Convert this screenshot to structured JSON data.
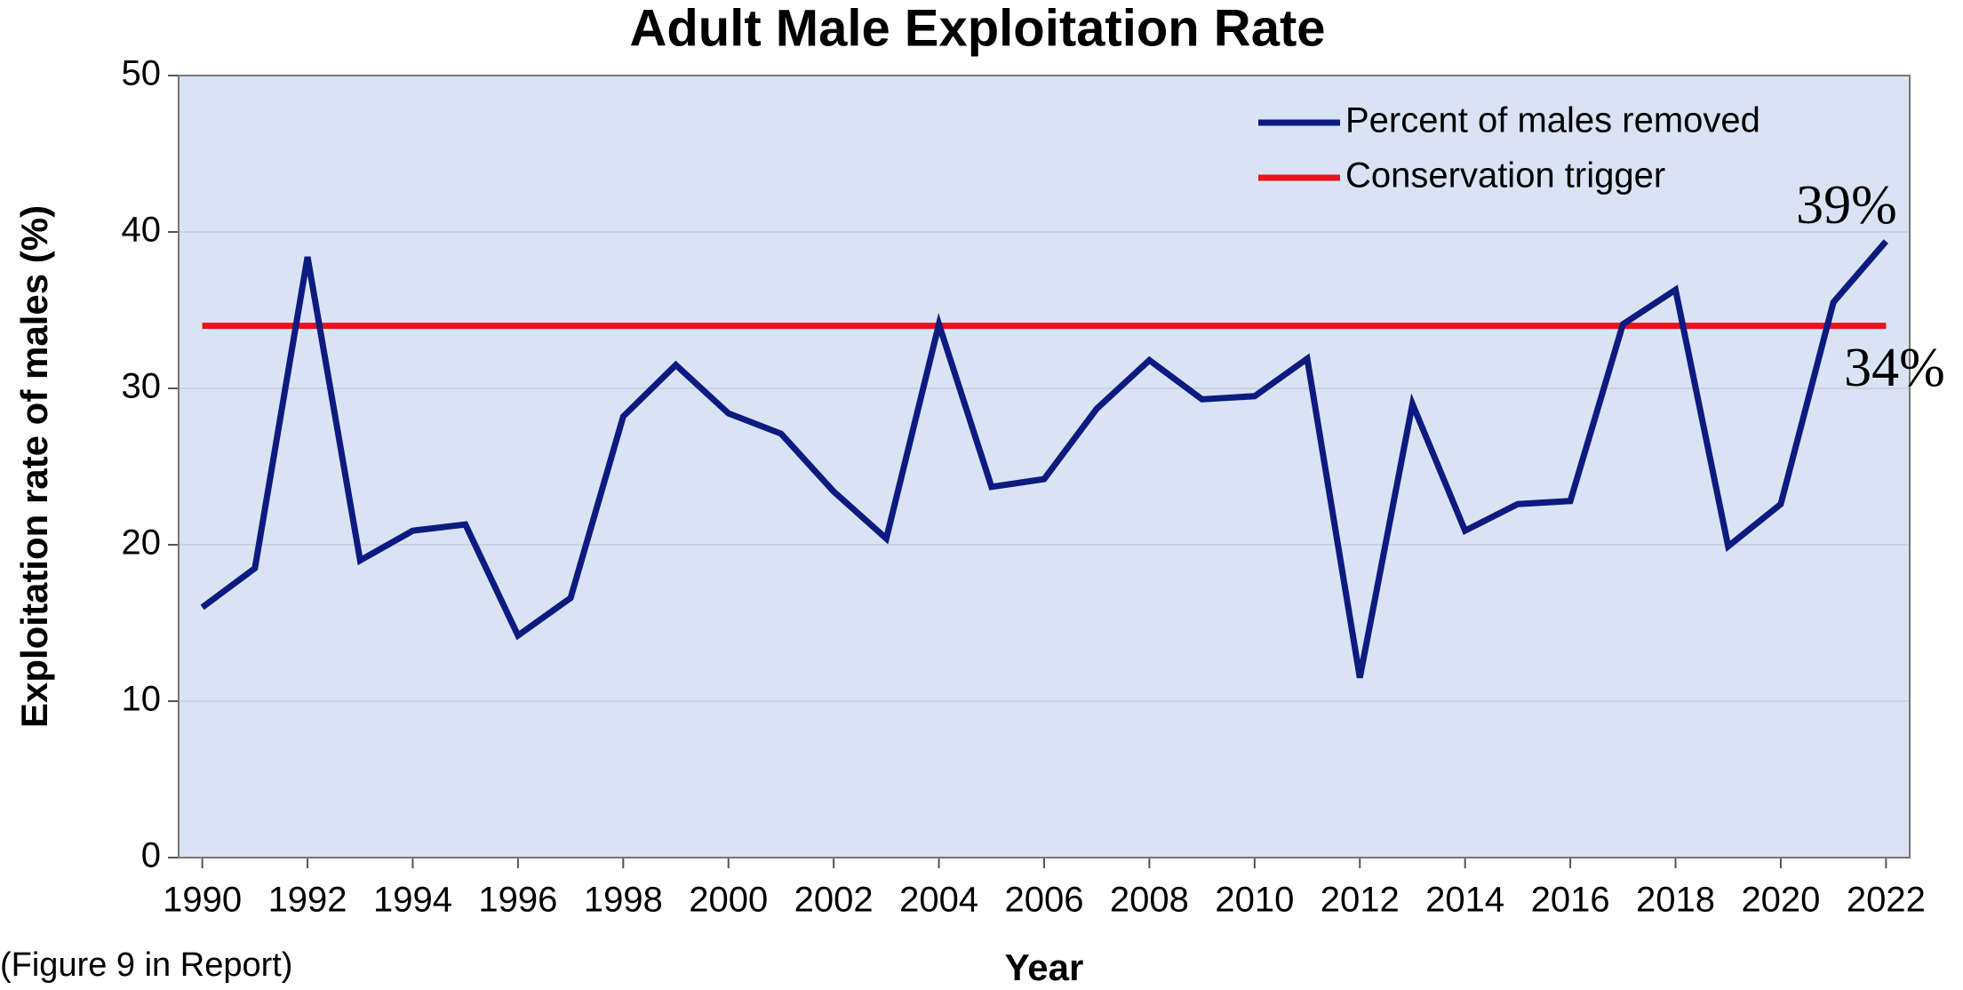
{
  "chart_data": {
    "type": "line",
    "title": "Adult Male Exploitation Rate",
    "x_label": "Year",
    "y_label": "Exploitation rate of males (%)",
    "footnote": "(Figure 9 in Report)",
    "x": [
      1990,
      1991,
      1992,
      1993,
      1994,
      1995,
      1996,
      1997,
      1998,
      1999,
      2000,
      2001,
      2002,
      2003,
      2004,
      2005,
      2006,
      2007,
      2008,
      2009,
      2010,
      2011,
      2012,
      2013,
      2014,
      2015,
      2016,
      2017,
      2018,
      2019,
      2020,
      2021,
      2022
    ],
    "series": [
      {
        "name": "Percent of males removed",
        "color": "#0d1a80",
        "values": [
          16,
          18.5,
          38.4,
          19,
          20.9,
          21.3,
          14.2,
          16.6,
          28.2,
          31.5,
          28.4,
          27.1,
          23.4,
          20.4,
          34.1,
          23.7,
          24.2,
          28.7,
          31.8,
          29.3,
          29.5,
          31.9,
          11.5,
          29,
          20.9,
          22.6,
          22.8,
          34.1,
          36.3,
          19.9,
          22.6,
          35.5,
          39.4
        ]
      },
      {
        "name": "Conservation trigger",
        "color": "#e8141c",
        "values": [
          34,
          34,
          34,
          34,
          34,
          34,
          34,
          34,
          34,
          34,
          34,
          34,
          34,
          34,
          34,
          34,
          34,
          34,
          34,
          34,
          34,
          34,
          34,
          34,
          34,
          34,
          34,
          34,
          34,
          34,
          34,
          34,
          34
        ]
      }
    ],
    "annotations": [
      {
        "series": 0,
        "index": 32,
        "label": "39%",
        "color": "#0d1a80"
      },
      {
        "series": 1,
        "index": 32,
        "label": "34%",
        "color": "#d0141c"
      }
    ],
    "xlim": [
      1989.55,
      2022.45
    ],
    "xticks": [
      1990,
      1992,
      1994,
      1996,
      1998,
      2000,
      2002,
      2004,
      2006,
      2008,
      2010,
      2012,
      2014,
      2016,
      2018,
      2020,
      2022
    ],
    "ylim": [
      0,
      50
    ],
    "yticks": [
      0,
      10,
      20,
      30,
      40,
      50
    ],
    "grid": true,
    "legend": "upper right"
  }
}
